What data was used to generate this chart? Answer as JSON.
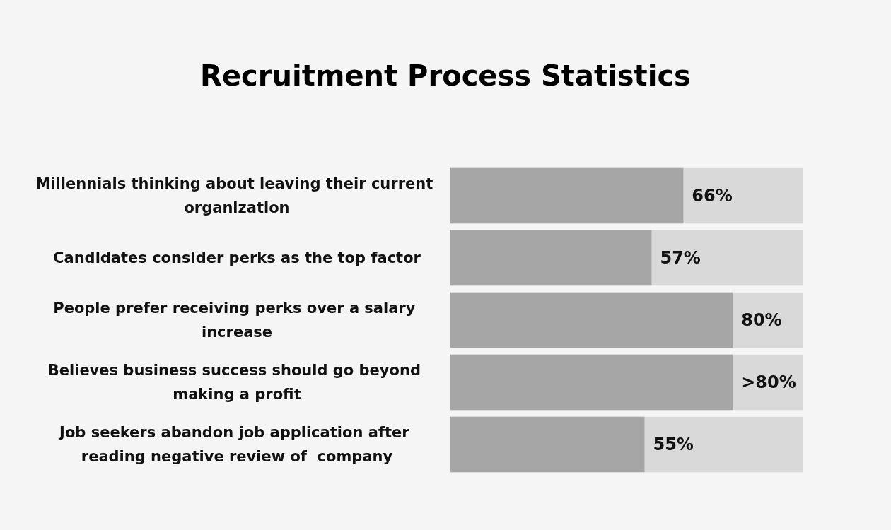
{
  "chart_data": {
    "type": "bar",
    "orientation": "horizontal",
    "title": "Recruitment Process Statistics",
    "categories": [
      "Millennials thinking about leaving their current organization",
      "Candidates consider perks as the top factor",
      "People prefer receiving perks over a salary increase",
      "Believes business success should go beyond making a profit",
      "Job seekers abandon job application after reading negative review of  company"
    ],
    "values": [
      66,
      57,
      80,
      80,
      55
    ],
    "value_labels": [
      "66%",
      "57%",
      "80%",
      ">80%",
      "55%"
    ],
    "color": "#a6a6a6",
    "xlim": [
      0,
      100
    ],
    "tick_labels": "y"
  }
}
